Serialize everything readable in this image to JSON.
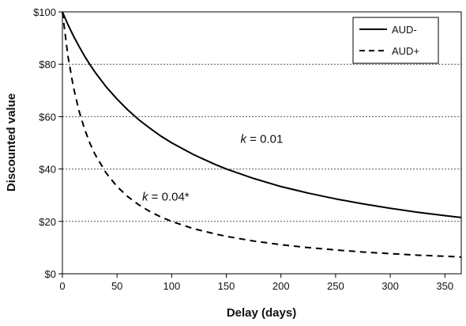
{
  "chart_data": {
    "type": "line",
    "title": "",
    "xlabel": "Delay (days)",
    "ylabel": "Discounted value",
    "xlim": [
      0,
      365
    ],
    "ylim": [
      0,
      100
    ],
    "x_ticks": [
      0,
      50,
      100,
      150,
      200,
      250,
      300,
      350
    ],
    "y_ticks": [
      0,
      20,
      40,
      60,
      80,
      100
    ],
    "y_tick_labels": [
      "$0",
      "$20",
      "$40",
      "$60",
      "$80",
      "$100"
    ],
    "grid": "horizontal dotted",
    "legend_position": "top-right",
    "x": [
      0,
      5,
      10,
      15,
      20,
      25,
      30,
      40,
      50,
      60,
      70,
      80,
      90,
      100,
      120,
      140,
      150,
      175,
      200,
      225,
      250,
      275,
      300,
      325,
      350,
      365
    ],
    "series": [
      {
        "name": "AUD-",
        "line_style": "solid",
        "color": "#000000",
        "values": [
          100,
          95.2,
          90.9,
          87.0,
          83.3,
          80.0,
          76.9,
          71.4,
          66.7,
          62.5,
          58.8,
          55.6,
          52.6,
          50.0,
          45.5,
          41.7,
          40.0,
          36.4,
          33.3,
          30.8,
          28.6,
          26.7,
          25.0,
          23.5,
          22.2,
          21.5
        ]
      },
      {
        "name": "AUD+",
        "line_style": "dashed",
        "color": "#000000",
        "values": [
          100,
          83.3,
          71.4,
          62.5,
          55.6,
          50.0,
          45.5,
          38.5,
          33.3,
          29.4,
          26.3,
          23.8,
          21.7,
          20.0,
          17.2,
          15.2,
          14.3,
          12.5,
          11.1,
          10.0,
          9.1,
          8.3,
          7.7,
          7.1,
          6.7,
          6.4
        ]
      }
    ],
    "annotations": [
      {
        "k_label": "k",
        "value_label": " = 0.01",
        "x": 163,
        "y": 50
      },
      {
        "k_label": "k",
        "value_label": " = 0.04*",
        "x": 73,
        "y": 28
      }
    ]
  }
}
